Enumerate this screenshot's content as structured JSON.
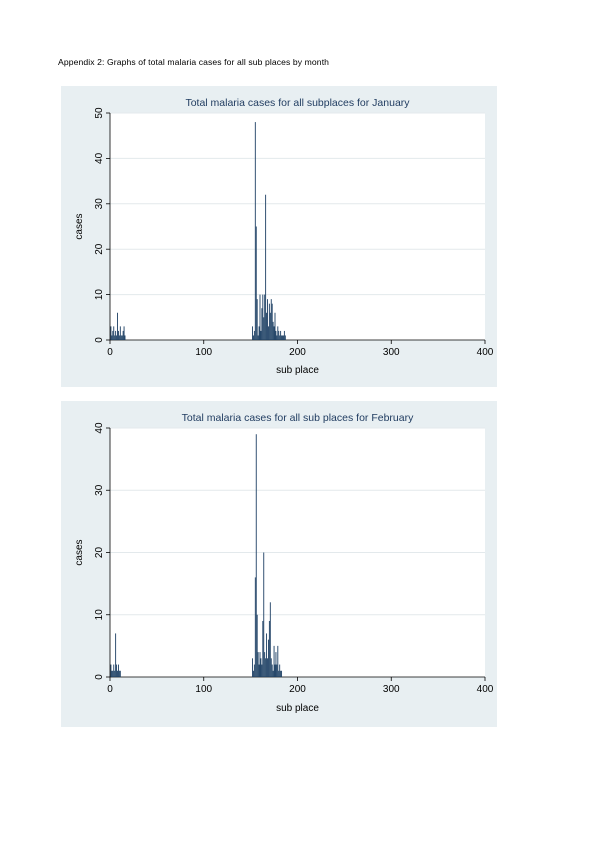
{
  "caption": "Appendix 2: Graphs of total malaria cases for all sub places by month",
  "colors": {
    "panel_bg": "#e8eff2",
    "plot_bg": "#ffffff",
    "bar": "#1c3f63",
    "title": "#1e3a5f",
    "grid": "#e3e9ec"
  },
  "chart_data": [
    {
      "type": "bar",
      "title": "Total malaria cases for all subplaces for January",
      "xlabel": "sub place",
      "ylabel": "cases",
      "xlim": [
        0,
        400
      ],
      "ylim": [
        0,
        50
      ],
      "xticks": [
        0,
        100,
        200,
        300,
        400
      ],
      "yticks": [
        0,
        10,
        20,
        30,
        40,
        50
      ],
      "grid": true,
      "x": [
        1,
        2,
        3,
        4,
        5,
        6,
        7,
        8,
        9,
        10,
        11,
        12,
        13,
        14,
        15,
        16,
        152,
        153,
        154,
        155,
        156,
        157,
        158,
        159,
        160,
        161,
        162,
        163,
        164,
        165,
        166,
        167,
        168,
        169,
        170,
        171,
        172,
        173,
        174,
        175,
        176,
        177,
        178,
        179,
        180,
        181,
        182,
        183,
        184,
        185,
        186,
        187
      ],
      "values": [
        3,
        1,
        2,
        3,
        1,
        2,
        1,
        6,
        2,
        1,
        3,
        1,
        1,
        2,
        3,
        1,
        3,
        1,
        2,
        48,
        25,
        9,
        1,
        3,
        10,
        2,
        7,
        10,
        5,
        10,
        32,
        6,
        9,
        3,
        8,
        6,
        9,
        8,
        4,
        3,
        6,
        2,
        1,
        3,
        2,
        1,
        2,
        1,
        1,
        1,
        2,
        1
      ]
    },
    {
      "type": "bar",
      "title": "Total malaria cases for all sub places for February",
      "xlabel": "sub place",
      "ylabel": "cases",
      "xlim": [
        0,
        400
      ],
      "ylim": [
        0,
        40
      ],
      "xticks": [
        0,
        100,
        200,
        300,
        400
      ],
      "yticks": [
        0,
        10,
        20,
        30,
        40
      ],
      "grid": true,
      "x": [
        1,
        2,
        3,
        4,
        5,
        6,
        7,
        8,
        9,
        10,
        11,
        152,
        153,
        154,
        155,
        156,
        157,
        158,
        159,
        160,
        161,
        162,
        163,
        164,
        165,
        166,
        167,
        168,
        169,
        170,
        171,
        172,
        173,
        174,
        175,
        176,
        177,
        178,
        179,
        180,
        181,
        182,
        183
      ],
      "values": [
        2,
        1,
        1,
        2,
        1,
        7,
        2,
        1,
        2,
        1,
        1,
        3,
        1,
        2,
        16,
        39,
        10,
        4,
        2,
        4,
        3,
        2,
        9,
        20,
        4,
        3,
        7,
        3,
        6,
        9,
        12,
        3,
        2,
        1,
        5,
        2,
        4,
        2,
        5,
        1,
        2,
        1,
        1
      ]
    }
  ]
}
